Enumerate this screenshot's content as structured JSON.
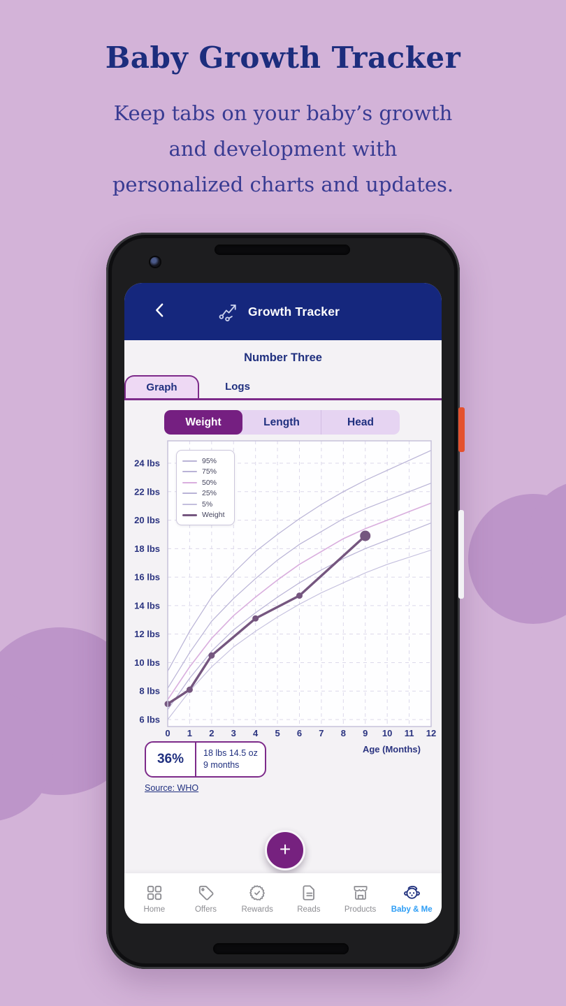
{
  "hero": {
    "title": "Baby Growth Tracker",
    "subtitle_lines": [
      "Keep tabs on your baby’s growth",
      "and development with",
      "personalized charts and updates."
    ]
  },
  "app": {
    "header": {
      "title": "Growth Tracker"
    },
    "child_name": "Number Three",
    "tabs": [
      {
        "label": "Graph",
        "active": true
      },
      {
        "label": "Logs",
        "active": false
      }
    ],
    "metrics": [
      {
        "label": "Weight",
        "active": true
      },
      {
        "label": "Length",
        "active": false
      },
      {
        "label": "Head",
        "active": false
      }
    ],
    "stat": {
      "percentile": "36%",
      "line1": "18 lbs 14.5 oz",
      "line2": "9 months"
    },
    "source_label": "Source: WHO",
    "fab_label": "+",
    "nav": [
      {
        "label": "Home",
        "active": false
      },
      {
        "label": "Offers",
        "active": false
      },
      {
        "label": "Rewards",
        "active": false
      },
      {
        "label": "Reads",
        "active": false
      },
      {
        "label": "Products",
        "active": false
      },
      {
        "label": "Baby & Me",
        "active": true
      }
    ]
  },
  "colors": {
    "header_blue": "#15277d",
    "navy_text": "#20307f",
    "purple_dark": "#751f81",
    "purple_border": "#7d2b8a",
    "tab_fill": "#eed9f4",
    "segment_fill": "#e6d4f2",
    "page_bg": "#d3b3d8",
    "cloud": "#bd95c9",
    "active_nav_blue": "#2d9df5",
    "nav_gray": "#8d8d92",
    "power_button_orange": "#e4512e"
  },
  "chart_data": {
    "type": "line",
    "xlabel": "Age (Months)",
    "ylabel": "lbs",
    "xlim": [
      0,
      12
    ],
    "ylim": [
      5.51,
      25.57
    ],
    "x_ticks": [
      0,
      1,
      2,
      3,
      4,
      5,
      6,
      7,
      8,
      9,
      10,
      11,
      12
    ],
    "y_ticks": [
      "24 lbs",
      "22 lbs",
      "20 lbs",
      "18 lbs",
      "16 lbs",
      "14 lbs",
      "12 lbs",
      "10 lbs",
      "8 lbs",
      "6 lbs"
    ],
    "grid": true,
    "legend_position": "upper-left",
    "series": [
      {
        "name": "95%",
        "color": "#b9b3d6",
        "width": 1.2,
        "values": [
          9.4,
          12.2,
          14.6,
          16.3,
          17.8,
          19.0,
          20.1,
          21.1,
          22.0,
          22.8,
          23.5,
          24.2,
          24.9
        ]
      },
      {
        "name": "75%",
        "color": "#b9b3d6",
        "width": 1.2,
        "values": [
          8.2,
          10.7,
          12.9,
          14.5,
          15.9,
          17.2,
          18.3,
          19.2,
          20.1,
          20.8,
          21.4,
          22.0,
          22.6
        ]
      },
      {
        "name": "50%",
        "color": "#d9aede",
        "width": 1.6,
        "values": [
          7.4,
          9.7,
          11.7,
          13.3,
          14.6,
          15.8,
          16.9,
          17.8,
          18.7,
          19.4,
          20.0,
          20.6,
          21.2
        ]
      },
      {
        "name": "25%",
        "color": "#b9b3d6",
        "width": 1.2,
        "values": [
          6.7,
          8.9,
          10.8,
          12.3,
          13.5,
          14.6,
          15.6,
          16.5,
          17.3,
          18.0,
          18.6,
          19.2,
          19.8
        ]
      },
      {
        "name": "5%",
        "color": "#c3bedd",
        "width": 1.1,
        "values": [
          6.0,
          8.0,
          9.7,
          11.1,
          12.2,
          13.2,
          14.1,
          14.9,
          15.6,
          16.3,
          16.9,
          17.4,
          17.9
        ]
      },
      {
        "name": "Weight",
        "color": "#75567f",
        "width": 3.4,
        "points": true,
        "x": [
          0,
          1,
          2,
          4,
          6,
          9
        ],
        "values": [
          7.1,
          8.1,
          10.5,
          13.1,
          14.7,
          18.9
        ]
      }
    ]
  }
}
